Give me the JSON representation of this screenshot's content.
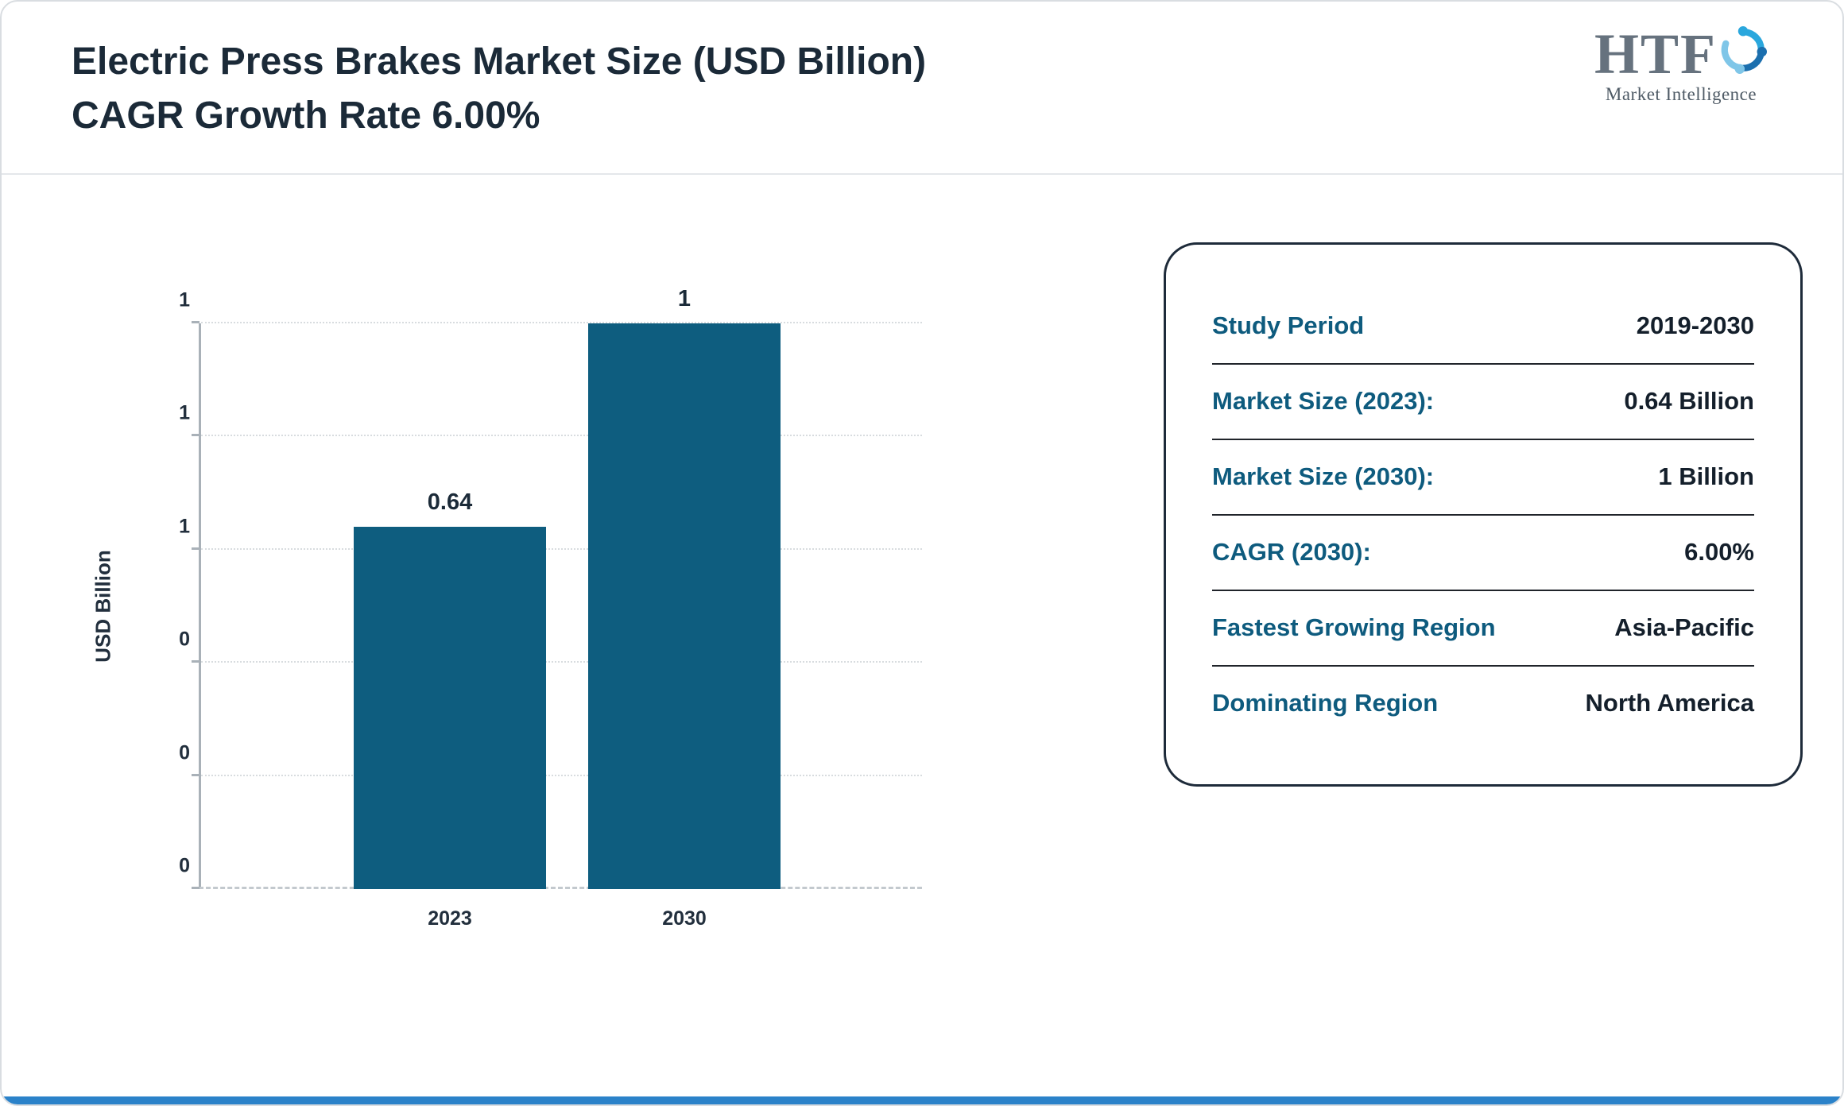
{
  "header": {
    "title_line1": "Electric Press Brakes Market Size (USD Billion)",
    "title_line2": "CAGR Growth Rate 6.00%"
  },
  "logo": {
    "name": "HTF",
    "tagline": "Market Intelligence"
  },
  "chart_data": {
    "type": "bar",
    "title": "Electric Press Brakes Market Size (USD Billion) CAGR Growth Rate 6.00%",
    "categories": [
      "2023",
      "2030"
    ],
    "values": [
      0.64,
      1
    ],
    "value_labels": [
      "0.64",
      "1"
    ],
    "ylabel": "USD Billion",
    "ylim": [
      0,
      1
    ],
    "ytick_labels_bottom_to_top": [
      "0",
      "0",
      "0",
      "1",
      "1",
      "1"
    ],
    "grid": "horizontal-dotted",
    "legend": "none",
    "bar_color": "#0e5d7f"
  },
  "info_card": {
    "rows": [
      {
        "label": "Study Period",
        "value": "2019-2030"
      },
      {
        "label": "Market Size (2023):",
        "value": "0.64 Billion"
      },
      {
        "label": "Market Size (2030):",
        "value": "1 Billion"
      },
      {
        "label": "CAGR (2030):",
        "value": "6.00%"
      },
      {
        "label": "Fastest Growing Region",
        "value": "Asia-Pacific"
      },
      {
        "label": "Dominating Region",
        "value": "North America"
      }
    ]
  },
  "colors": {
    "title": "#1b2a38",
    "bar": "#0e5d7f",
    "info_label": "#0e5b7e",
    "info_value": "#141f2b",
    "footer_accent": "#2b82c9"
  }
}
